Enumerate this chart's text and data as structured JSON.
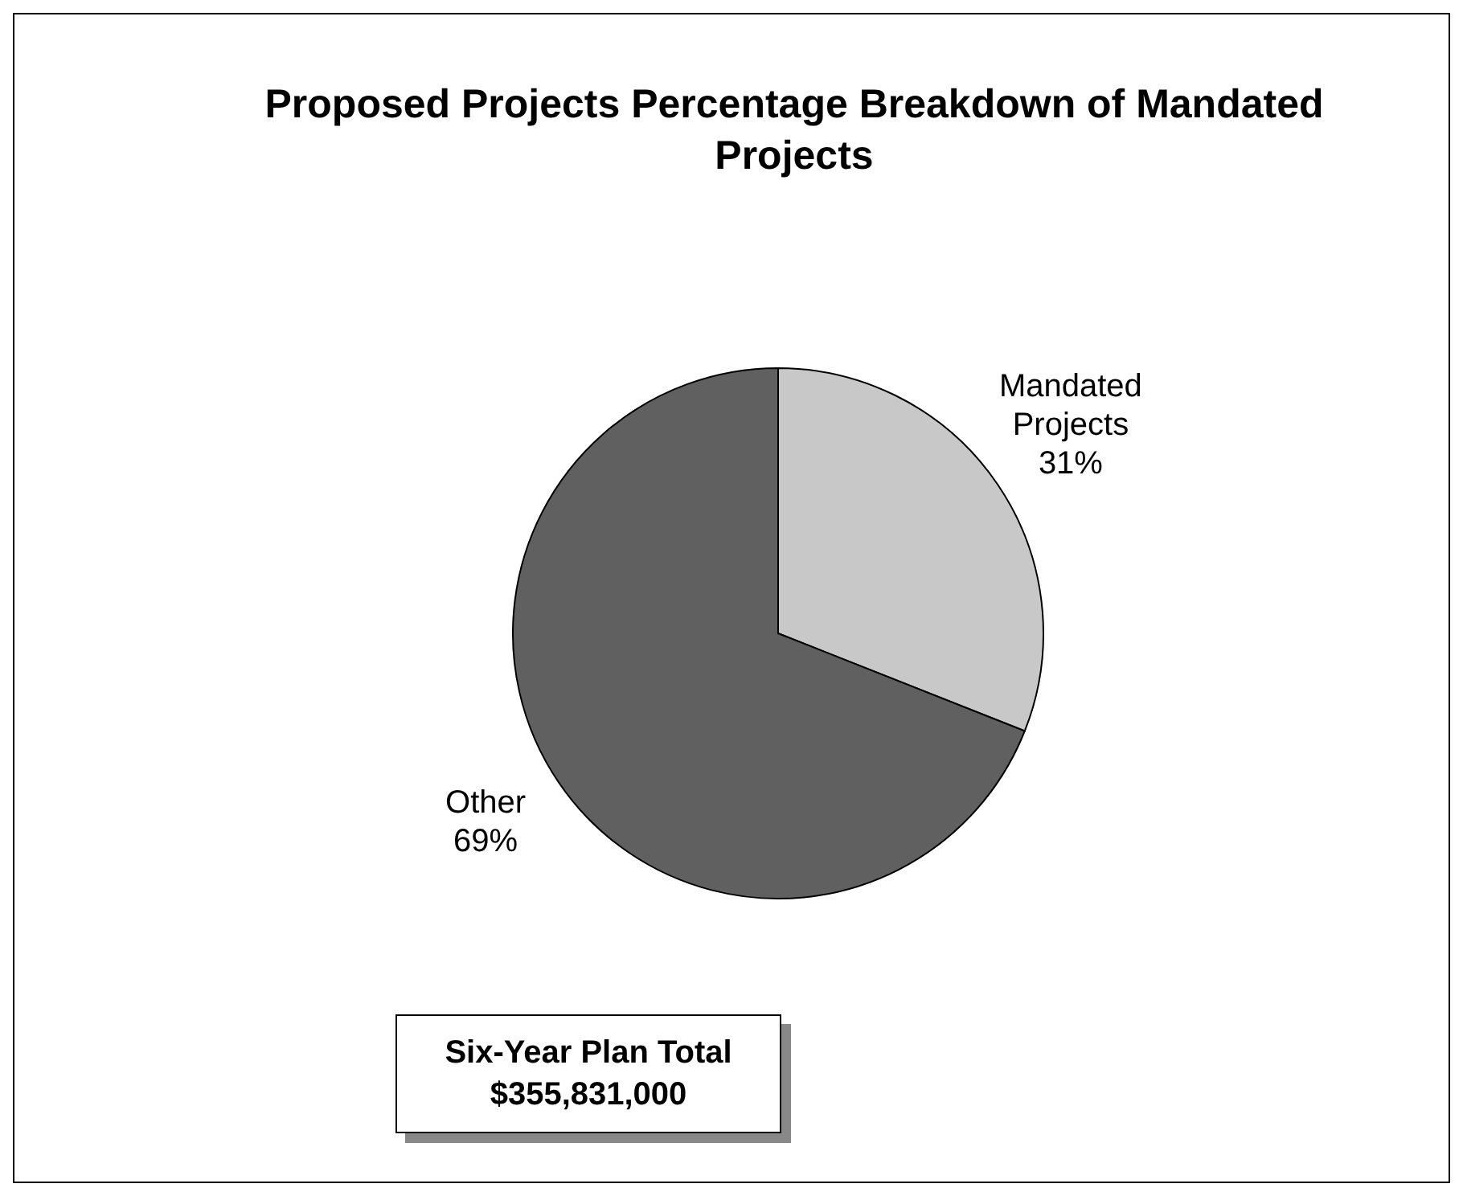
{
  "chart_data": {
    "type": "pie",
    "title": "Proposed Projects Percentage Breakdown of Mandated Projects",
    "categories": [
      "Mandated Projects",
      "Other"
    ],
    "values": [
      31,
      69
    ],
    "colors": [
      "#c8c8c8",
      "#606060"
    ],
    "value_labels": [
      "31%",
      "69%"
    ],
    "legend": false,
    "annotations": [
      "Six-Year Plan Total\n$355,831,000"
    ]
  }
}
